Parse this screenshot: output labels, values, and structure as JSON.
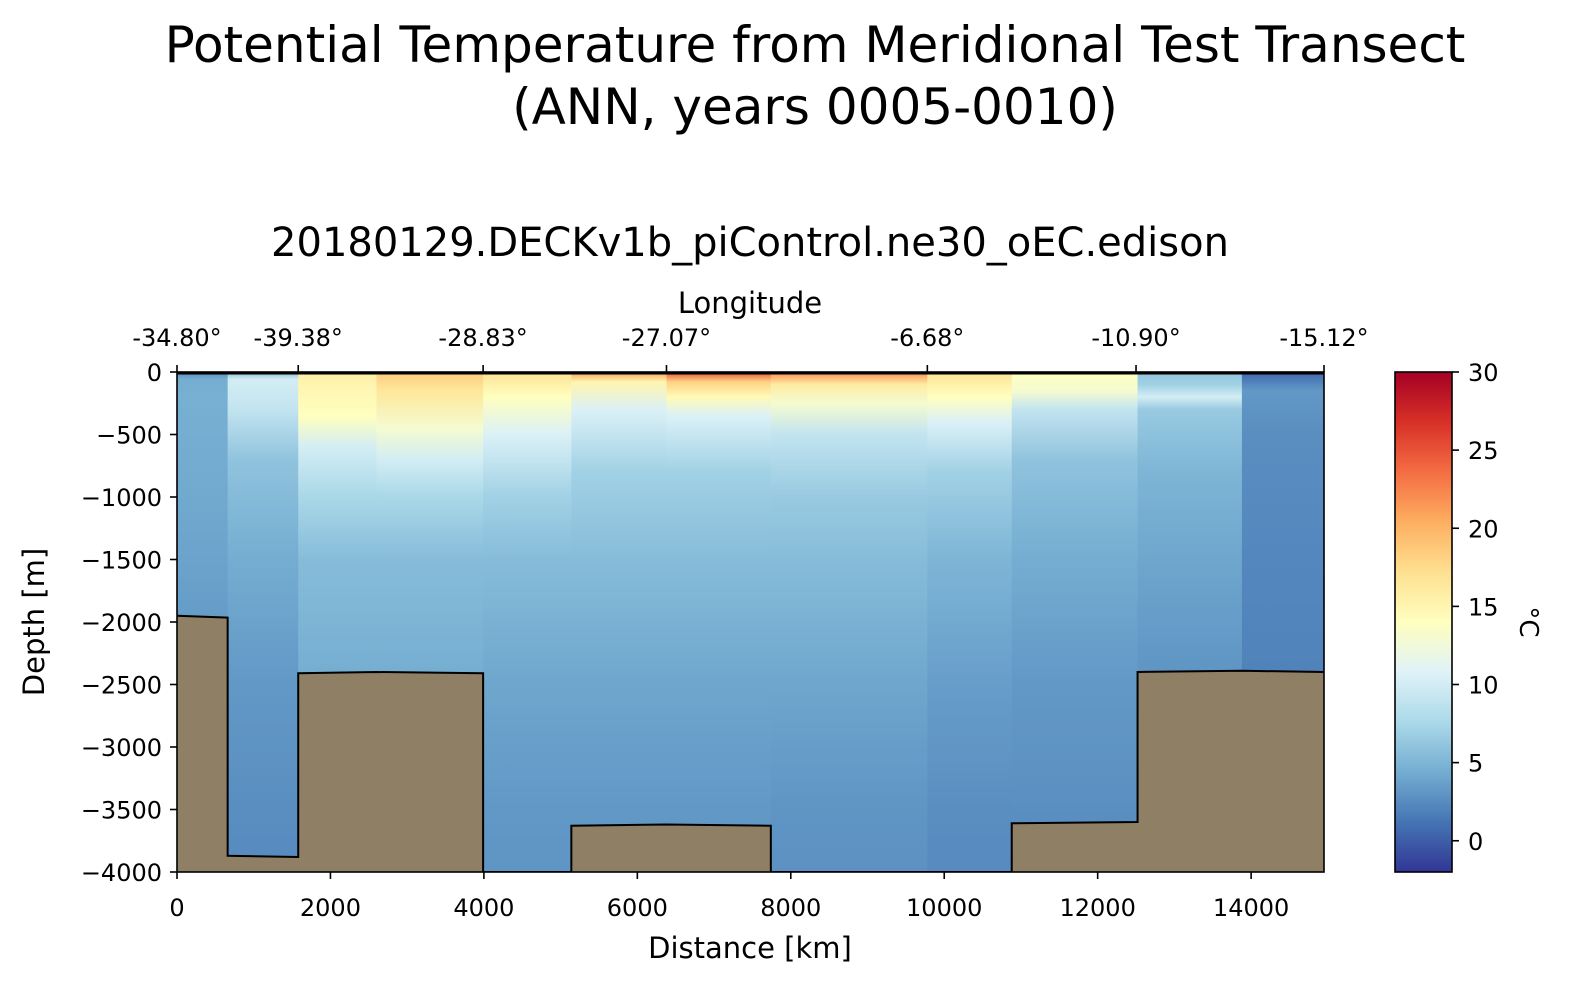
{
  "chart_data": {
    "type": "heatmap",
    "title_line1": "Potential Temperature from Meridional Test Transect",
    "title_line2": "(ANN, years 0005-0010)",
    "subtitle": "20180129.DECKv1b_piControl.ne30_oEC.edison",
    "xlabel": "Distance [km]",
    "ylabel": "Depth [m]",
    "top_xlabel": "Longitude",
    "colorbar_label": "°C",
    "xlim": [
      0,
      14950
    ],
    "ylim": [
      -4000,
      0
    ],
    "clim": [
      -2,
      30
    ],
    "x_ticks": [
      0,
      2000,
      4000,
      6000,
      8000,
      10000,
      12000,
      14000
    ],
    "x_tick_labels": [
      "0",
      "2000",
      "4000",
      "6000",
      "8000",
      "10000",
      "12000",
      "14000"
    ],
    "y_ticks": [
      0,
      -500,
      -1000,
      -1500,
      -2000,
      -2500,
      -3000,
      -3500,
      -4000
    ],
    "y_tick_labels": [
      "0",
      "−500",
      "−1000",
      "−1500",
      "−2000",
      "−2500",
      "−3000",
      "−3500",
      "−4000"
    ],
    "top_ticks": [
      0,
      1580,
      3990,
      6380,
      9780,
      12500,
      14950
    ],
    "top_tick_labels": [
      "-34.80°",
      "-39.38°",
      "-28.83°",
      "-27.07°",
      "-6.68°",
      "-10.90°",
      "-15.12°"
    ],
    "colorbar_ticks": [
      0,
      5,
      10,
      15,
      20,
      25,
      30
    ],
    "colorbar_tick_labels": [
      "0",
      "5",
      "10",
      "15",
      "20",
      "25",
      "30"
    ],
    "colormap": [
      "#313695",
      "#4575b4",
      "#74add1",
      "#abd9e9",
      "#e0f3f8",
      "#ffffbf",
      "#fee090",
      "#fdae61",
      "#f46d43",
      "#d73027",
      "#a50026"
    ],
    "bathymetry_color": "#8f8065",
    "columns": [
      {
        "x0": 0,
        "x1": 660,
        "profile": [
          [
            0,
            2.5
          ],
          [
            -60,
            4.5
          ],
          [
            -200,
            4.6
          ],
          [
            -800,
            4.3
          ],
          [
            -1500,
            3.8
          ],
          [
            -2000,
            3.4
          ]
        ]
      },
      {
        "x0": 660,
        "x1": 1580,
        "profile": [
          [
            0,
            5.5
          ],
          [
            -60,
            10
          ],
          [
            -300,
            9
          ],
          [
            -700,
            6
          ],
          [
            -1500,
            4.4
          ],
          [
            -2500,
            3.2
          ],
          [
            -3500,
            2.6
          ],
          [
            -4000,
            2.4
          ]
        ]
      },
      {
        "x0": 1580,
        "x1": 2600,
        "profile": [
          [
            0,
            16
          ],
          [
            -100,
            15
          ],
          [
            -350,
            14
          ],
          [
            -600,
            10
          ],
          [
            -1000,
            7.5
          ],
          [
            -1500,
            5.5
          ],
          [
            -2400,
            4.5
          ]
        ]
      },
      {
        "x0": 2600,
        "x1": 3990,
        "profile": [
          [
            0,
            18.5
          ],
          [
            -150,
            16.5
          ],
          [
            -450,
            13
          ],
          [
            -700,
            10
          ],
          [
            -1000,
            7.5
          ],
          [
            -1500,
            5.5
          ],
          [
            -2400,
            4.5
          ]
        ]
      },
      {
        "x0": 3990,
        "x1": 5140,
        "profile": [
          [
            0,
            17
          ],
          [
            -200,
            14
          ],
          [
            -500,
            10.5
          ],
          [
            -1000,
            7
          ],
          [
            -1500,
            5.5
          ],
          [
            -2500,
            4
          ],
          [
            -3500,
            3.2
          ],
          [
            -4000,
            3
          ]
        ]
      },
      {
        "x0": 5140,
        "x1": 6380,
        "profile": [
          [
            0,
            21
          ],
          [
            -80,
            15
          ],
          [
            -300,
            10.5
          ],
          [
            -800,
            7
          ],
          [
            -1500,
            5.5
          ],
          [
            -2500,
            4
          ],
          [
            -3500,
            3.2
          ]
        ]
      },
      {
        "x0": 6380,
        "x1": 7740,
        "profile": [
          [
            0,
            25
          ],
          [
            -80,
            18
          ],
          [
            -200,
            14.5
          ],
          [
            -350,
            10.5
          ],
          [
            -800,
            7
          ],
          [
            -1500,
            5.5
          ],
          [
            -2500,
            4
          ],
          [
            -3500,
            3.2
          ]
        ]
      },
      {
        "x0": 7740,
        "x1": 9780,
        "profile": [
          [
            0,
            22
          ],
          [
            -100,
            16
          ],
          [
            -250,
            13
          ],
          [
            -500,
            9
          ],
          [
            -1000,
            6.5
          ],
          [
            -1500,
            5.5
          ],
          [
            -2500,
            4
          ],
          [
            -3500,
            3
          ],
          [
            -4000,
            2.8
          ]
        ]
      },
      {
        "x0": 9780,
        "x1": 10880,
        "profile": [
          [
            0,
            17
          ],
          [
            -200,
            14
          ],
          [
            -400,
            10.5
          ],
          [
            -800,
            7
          ],
          [
            -1500,
            5
          ],
          [
            -2500,
            3.5
          ],
          [
            -3500,
            2.6
          ],
          [
            -4000,
            2.4
          ]
        ]
      },
      {
        "x0": 10880,
        "x1": 12520,
        "profile": [
          [
            0,
            14
          ],
          [
            -150,
            13
          ],
          [
            -300,
            9
          ],
          [
            -700,
            6
          ],
          [
            -1500,
            4.4
          ],
          [
            -2500,
            3.2
          ],
          [
            -3600,
            2.6
          ]
        ]
      },
      {
        "x0": 12520,
        "x1": 13880,
        "profile": [
          [
            0,
            6
          ],
          [
            -100,
            7
          ],
          [
            -200,
            10
          ],
          [
            -300,
            6.5
          ],
          [
            -800,
            5
          ],
          [
            -1500,
            4
          ],
          [
            -2400,
            3
          ]
        ]
      },
      {
        "x0": 13880,
        "x1": 14950,
        "profile": [
          [
            0,
            0.5
          ],
          [
            -80,
            2
          ],
          [
            -150,
            3.2
          ],
          [
            -500,
            2.6
          ],
          [
            -1500,
            2.2
          ],
          [
            -2400,
            2
          ]
        ]
      }
    ],
    "bathymetry": [
      [
        0,
        -1950
      ],
      [
        660,
        -1965
      ],
      [
        660,
        -3870
      ],
      [
        1580,
        -3880
      ],
      [
        1580,
        -2410
      ],
      [
        2600,
        -2400
      ],
      [
        3990,
        -2410
      ],
      [
        3990,
        -4000
      ],
      [
        5140,
        -4000
      ],
      [
        5140,
        -3630
      ],
      [
        6380,
        -3620
      ],
      [
        7740,
        -3630
      ],
      [
        7740,
        -4000
      ],
      [
        10880,
        -4000
      ],
      [
        10880,
        -3610
      ],
      [
        12520,
        -3600
      ],
      [
        12520,
        -2400
      ],
      [
        13880,
        -2390
      ],
      [
        14950,
        -2400
      ]
    ]
  }
}
